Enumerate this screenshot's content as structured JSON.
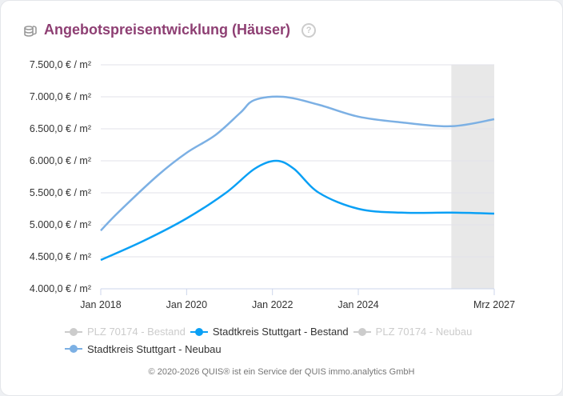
{
  "header": {
    "title": "Angebotspreisentwicklung (Häuser)",
    "icon": "coins-icon",
    "help_icon": "question-circle-icon",
    "help": "?"
  },
  "chart_data": {
    "type": "line",
    "ylim": [
      4000,
      7500
    ],
    "y_ticks": [
      4000,
      4500,
      5000,
      5500,
      6000,
      6500,
      7000,
      7500
    ],
    "y_tick_labels": [
      "4.000,0 € / m²",
      "4.500,0 € / m²",
      "5.000,0 € / m²",
      "5.500,0 € / m²",
      "6.000,0 € / m²",
      "6.500,0 € / m²",
      "7.000,0 € / m²",
      "7.500,0 € / m²"
    ],
    "xlim": [
      "2018-01",
      "2027-03"
    ],
    "x_ticks": [
      "2018-01",
      "2020-01",
      "2022-01",
      "2024-01",
      "2027-03"
    ],
    "x_tick_labels": [
      "Jan 2018",
      "Jan 2020",
      "Jan 2022",
      "Jan 2024",
      "Mrz 2027"
    ],
    "forecast_band": [
      "2026-03",
      "2027-03"
    ],
    "grid": true,
    "legend_position": "bottom",
    "series": [
      {
        "name": "PLZ 70174 - Bestand",
        "color": "#cccccc",
        "visible": false,
        "x": [],
        "y": []
      },
      {
        "name": "Stadtkreis Stuttgart - Bestand",
        "color": "#0aa0f5",
        "visible": true,
        "x": [
          "2018-01",
          "2019-01",
          "2020-01",
          "2020-12",
          "2021-08",
          "2022-02",
          "2022-07",
          "2023-02",
          "2024-01",
          "2025-01",
          "2026-03",
          "2027-03"
        ],
        "y": [
          4450,
          4750,
          5100,
          5500,
          5875,
          6000,
          5875,
          5500,
          5250,
          5190,
          5190,
          5175
        ]
      },
      {
        "name": "PLZ 70174 - Neubau",
        "color": "#cccccc",
        "visible": false,
        "x": [],
        "y": []
      },
      {
        "name": "Stadtkreis Stuttgart - Neubau",
        "color": "#7cb0e4",
        "visible": true,
        "x": [
          "2018-01",
          "2018-06",
          "2019-05",
          "2020-01",
          "2020-09",
          "2021-04",
          "2021-08",
          "2022-04",
          "2023-02",
          "2024-01",
          "2025-01",
          "2026-03",
          "2027-03"
        ],
        "y": [
          4910,
          5200,
          5775,
          6125,
          6400,
          6750,
          6950,
          7000,
          6875,
          6690,
          6600,
          6540,
          6650
        ]
      }
    ]
  },
  "footer": "© 2020-2026 QUIS® ist ein Service der QUIS immo.analytics GmbH"
}
